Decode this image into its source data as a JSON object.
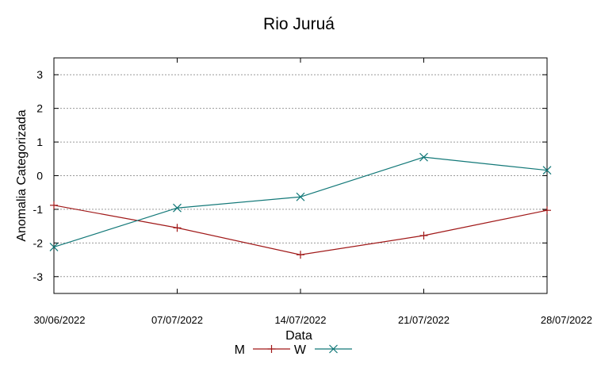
{
  "chart_data": {
    "type": "line",
    "title": "Rio Juruá",
    "xlabel": "Data",
    "ylabel": "Anomalia Categorizada",
    "categories": [
      "30/06/2022",
      "07/07/2022",
      "14/07/2022",
      "21/07/2022",
      "28/07/2022"
    ],
    "ylim": [
      -3.5,
      3.5
    ],
    "yticks": [
      -3,
      -2,
      -1,
      0,
      1,
      2,
      3
    ],
    "grid": true,
    "legend_position": "bottom",
    "series": [
      {
        "name": "M",
        "marker": "plus",
        "color": "#a01818",
        "values": [
          -0.88,
          -1.55,
          -2.35,
          -1.78,
          -1.03
        ]
      },
      {
        "name": "W",
        "marker": "cross",
        "color": "#127878",
        "values": [
          -2.12,
          -0.96,
          -0.63,
          0.55,
          0.16
        ]
      }
    ]
  }
}
